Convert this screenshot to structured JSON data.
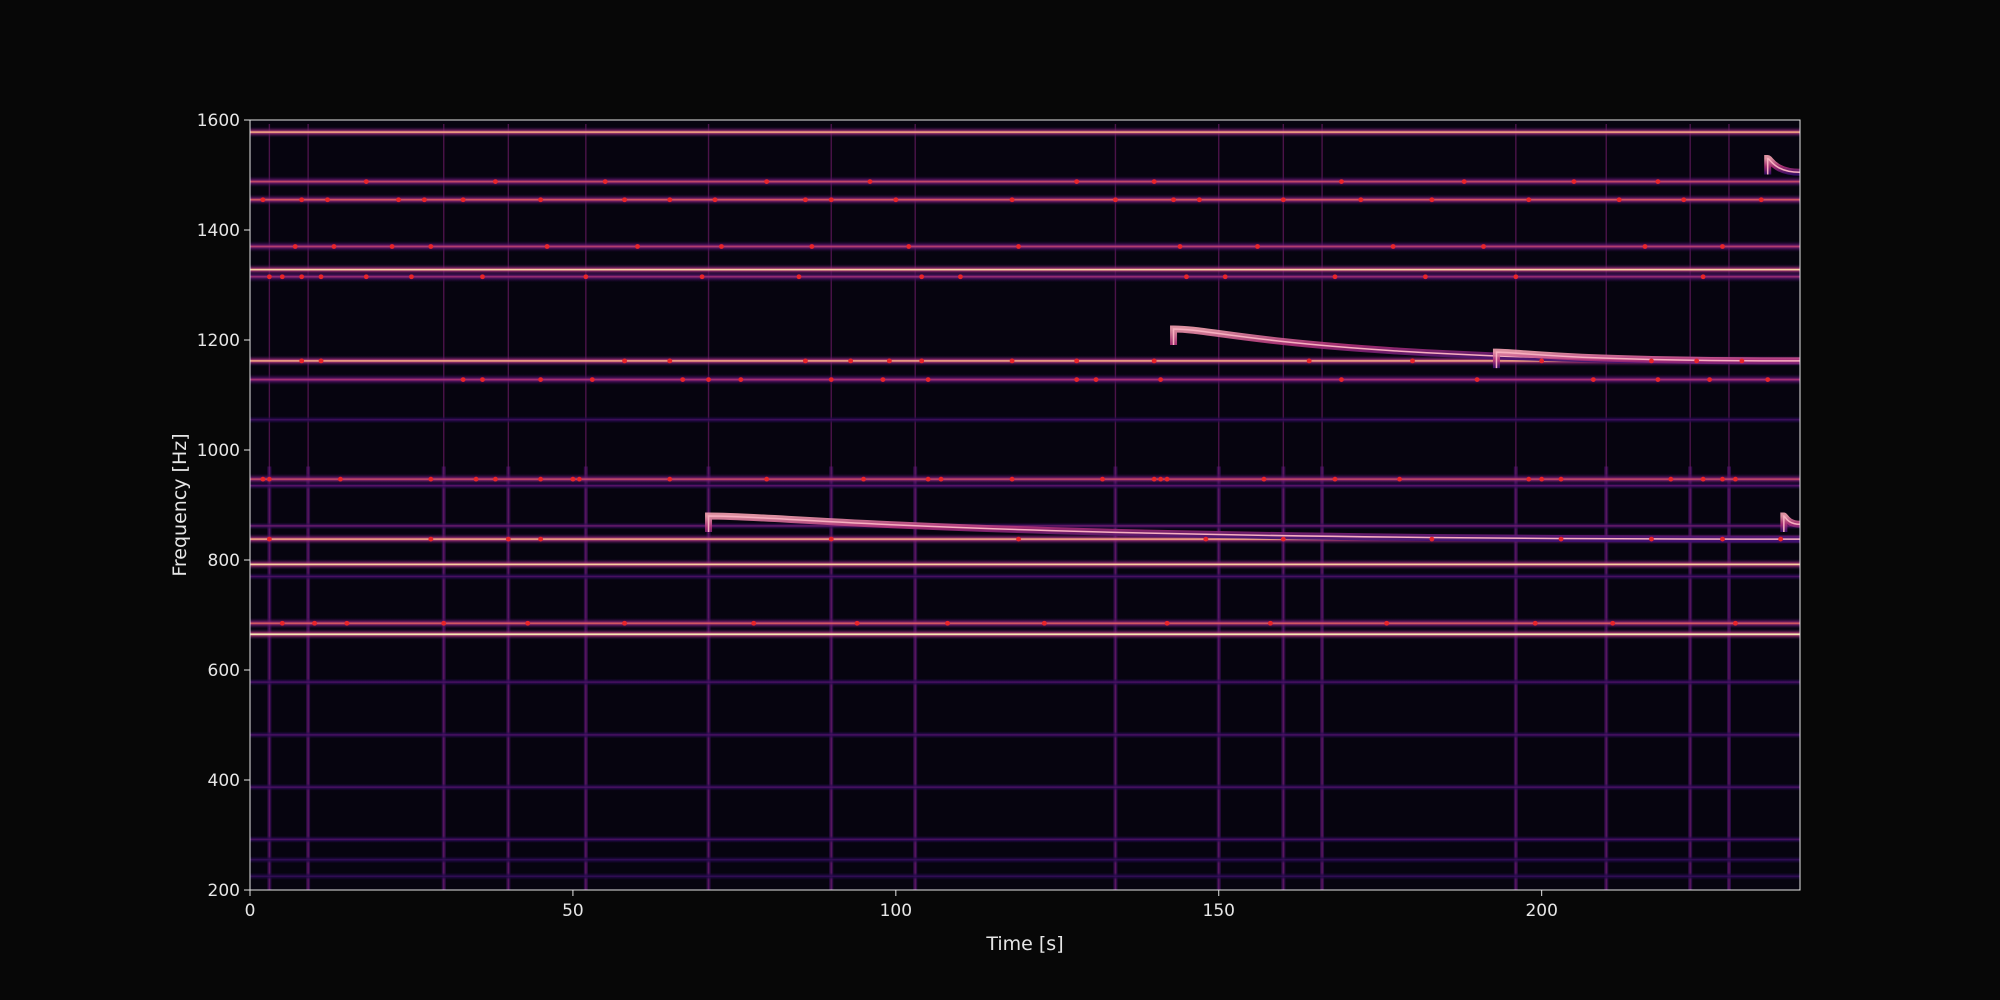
{
  "chart_data": {
    "type": "heatmap",
    "xlabel": "Time [s]",
    "ylabel": "Frequency [Hz]",
    "xlim": [
      0,
      240
    ],
    "ylim": [
      200,
      1600
    ],
    "x_ticks": [
      0,
      50,
      100,
      150,
      200
    ],
    "y_ticks": [
      200,
      400,
      600,
      800,
      1000,
      1200,
      1400,
      1600
    ],
    "colormap": "magma",
    "colors": {
      "background": "#070707",
      "plot_background": "#06040f",
      "axes": "#e6e6e6",
      "peak_marker": "#e8252a"
    },
    "bands": [
      {
        "freq": 1578,
        "intensity": 0.85
      },
      {
        "freq": 1488,
        "intensity": 0.7
      },
      {
        "freq": 1455,
        "intensity": 0.75
      },
      {
        "freq": 1370,
        "intensity": 0.65
      },
      {
        "freq": 1328,
        "intensity": 0.9
      },
      {
        "freq": 1315,
        "intensity": 0.55
      },
      {
        "freq": 1162,
        "intensity": 0.85
      },
      {
        "freq": 1128,
        "intensity": 0.6
      },
      {
        "freq": 1055,
        "intensity": 0.3
      },
      {
        "freq": 947,
        "intensity": 0.7
      },
      {
        "freq": 935,
        "intensity": 0.4
      },
      {
        "freq": 862,
        "intensity": 0.45
      },
      {
        "freq": 838,
        "intensity": 0.85
      },
      {
        "freq": 792,
        "intensity": 0.9
      },
      {
        "freq": 770,
        "intensity": 0.35
      },
      {
        "freq": 685,
        "intensity": 0.75
      },
      {
        "freq": 665,
        "intensity": 0.95
      },
      {
        "freq": 578,
        "intensity": 0.35
      },
      {
        "freq": 482,
        "intensity": 0.35
      },
      {
        "freq": 387,
        "intensity": 0.35
      },
      {
        "freq": 292,
        "intensity": 0.35
      },
      {
        "freq": 255,
        "intensity": 0.25
      },
      {
        "freq": 225,
        "intensity": 0.25
      }
    ],
    "sweeps": [
      {
        "t_start": 71,
        "t_end": 240,
        "f_start": 880,
        "f_end": 838
      },
      {
        "t_start": 143,
        "t_end": 240,
        "f_start": 1220,
        "f_end": 1162
      },
      {
        "t_start": 193,
        "t_end": 240,
        "f_start": 1178,
        "f_end": 1162
      },
      {
        "t_start": 235,
        "t_end": 240,
        "f_start": 1530,
        "f_end": 1505
      },
      {
        "t_start": 237.5,
        "t_end": 240,
        "f_start": 880,
        "f_end": 865
      }
    ],
    "vertical_events": [
      3,
      9,
      30,
      40,
      52,
      71,
      90,
      103,
      134,
      150,
      160,
      166,
      196,
      210,
      223,
      229
    ],
    "peak_markers": [
      {
        "freq": 1455,
        "times": [
          2,
          8,
          12,
          23,
          27,
          33,
          45,
          58,
          65,
          72,
          86,
          90,
          100,
          118,
          134,
          143,
          147,
          160,
          172,
          183,
          198,
          212,
          222,
          234
        ]
      },
      {
        "freq": 1488,
        "times": [
          18,
          38,
          55,
          80,
          96,
          128,
          140,
          169,
          188,
          205,
          218
        ]
      },
      {
        "freq": 1370,
        "times": [
          7,
          13,
          22,
          28,
          46,
          60,
          73,
          87,
          102,
          119,
          144,
          156,
          177,
          191,
          216,
          228
        ]
      },
      {
        "freq": 1315,
        "times": [
          3,
          5,
          8,
          11,
          18,
          25,
          36,
          52,
          70,
          85,
          104,
          110,
          145,
          151,
          168,
          182,
          196,
          225
        ]
      },
      {
        "freq": 1162,
        "times": [
          8,
          11,
          58,
          65,
          86,
          93,
          99,
          104,
          118,
          128,
          140,
          164,
          180,
          200,
          217,
          224,
          231
        ]
      },
      {
        "freq": 1128,
        "times": [
          33,
          36,
          45,
          53,
          67,
          71,
          76,
          90,
          98,
          105,
          128,
          131,
          141,
          169,
          190,
          208,
          218,
          226,
          235
        ]
      },
      {
        "freq": 947,
        "times": [
          2,
          3,
          14,
          28,
          35,
          38,
          45,
          50,
          51,
          65,
          80,
          95,
          105,
          107,
          118,
          132,
          140,
          141,
          142,
          157,
          168,
          178,
          198,
          200,
          203,
          220,
          225,
          228,
          230
        ]
      },
      {
        "freq": 838,
        "times": [
          3,
          28,
          40,
          45,
          90,
          119,
          148,
          160,
          183,
          203,
          217,
          228,
          237
        ]
      },
      {
        "freq": 685,
        "times": [
          5,
          10,
          15,
          30,
          43,
          58,
          78,
          94,
          108,
          123,
          142,
          158,
          176,
          199,
          211,
          230
        ]
      }
    ]
  }
}
